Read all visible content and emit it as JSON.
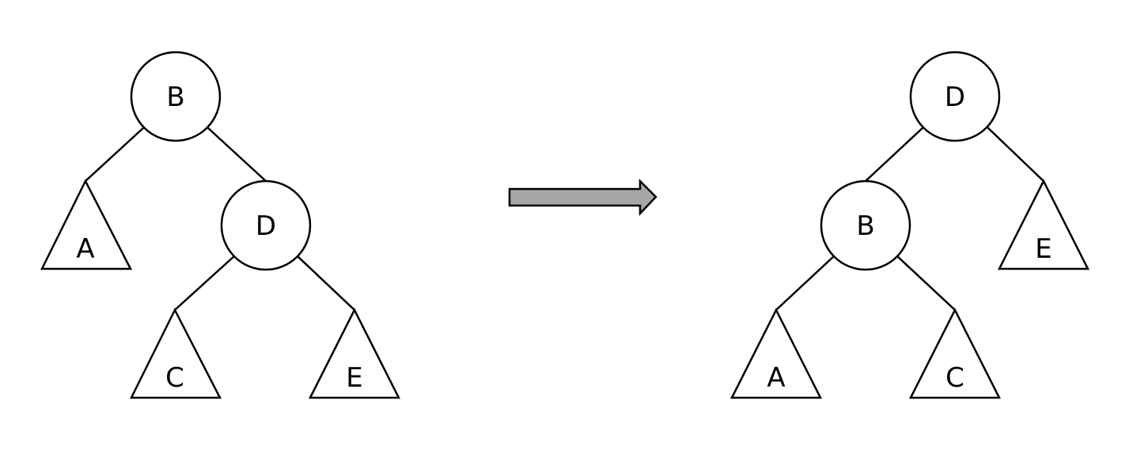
{
  "colors": {
    "stroke": "#000000",
    "background": "#ffffff",
    "arrow_fill": "#a6a6a6"
  },
  "before_tree": {
    "root_label": "B",
    "root_right_child_label": "D",
    "subtree_a_label": "A",
    "subtree_c_label": "C",
    "subtree_e_label": "E"
  },
  "transition_arrow": {
    "icon": "right-arrow-icon"
  },
  "after_tree": {
    "root_label": "D",
    "root_left_child_label": "B",
    "subtree_a_label": "A",
    "subtree_c_label": "C",
    "subtree_e_label": "E"
  }
}
